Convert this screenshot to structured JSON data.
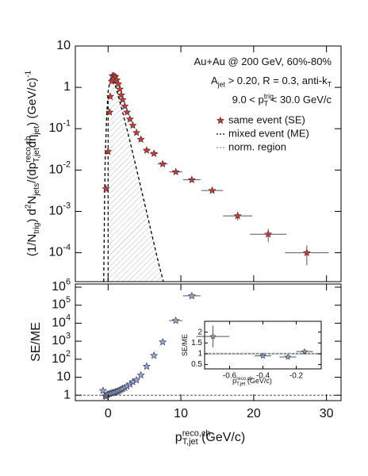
{
  "chart_data": [
    {
      "type": "scatter",
      "log_y": true,
      "ylabel": [
        {
          "t": "(1/N"
        },
        {
          "sub": "trig"
        },
        {
          "t": ") d"
        },
        {
          "sup": "2"
        },
        {
          "t": "N"
        },
        {
          "sub": "jets"
        },
        {
          "t": "/(dp"
        },
        {
          "sup": "reco,ch",
          "sub": "T,jet"
        },
        {
          "t": "dη"
        },
        {
          "sub": "jet"
        },
        {
          "t": ")  (GeV/c)"
        },
        {
          "sup": "-1"
        }
      ],
      "annotations": [
        [
          {
            "t": "Au+Au @ 200 GeV, 60%-80%"
          }
        ],
        [
          {
            "t": "A"
          },
          {
            "sub": "jet"
          },
          {
            "t": " > 0.20, R = 0.3, anti-k"
          },
          {
            "sub": "T"
          }
        ],
        [
          {
            "t": "9.0 < p"
          },
          {
            "sup": "trig",
            "sub": "T"
          },
          {
            "t": " < 30.0 GeV/c"
          }
        ]
      ],
      "xlim": [
        -4.5,
        32
      ],
      "ylim": [
        2e-05,
        10
      ],
      "yticks": [
        {
          "value": 10,
          "label": "10"
        },
        {
          "value": 1,
          "label": "1"
        },
        {
          "value": 0.1,
          "label": "10",
          "sup": "-1"
        },
        {
          "value": 0.01,
          "label": "10",
          "sup": "-2"
        },
        {
          "value": 0.001,
          "label": "10",
          "sup": "-3"
        },
        {
          "value": 0.0001,
          "label": "10",
          "sup": "-4"
        }
      ],
      "series": [
        {
          "name": "same event (SE)",
          "color": "#e03030",
          "marker": "star",
          "x": [
            -0.3,
            0.0,
            0.2,
            0.3,
            0.5,
            0.6,
            0.8,
            1.0,
            1.2,
            1.4,
            1.6,
            1.8,
            2.0,
            2.3,
            2.6,
            3.0,
            3.4,
            3.9,
            4.5,
            5.3,
            6.3,
            7.5,
            9.3,
            11.5,
            14.3,
            17.8,
            22.0,
            27.3
          ],
          "values": [
            0.0035,
            0.028,
            0.25,
            0.6,
            1.4,
            1.9,
            1.9,
            1.8,
            1.5,
            1.2,
            0.9,
            0.65,
            0.5,
            0.35,
            0.25,
            0.17,
            0.12,
            0.08,
            0.055,
            0.03,
            0.025,
            0.014,
            0.009,
            0.0058,
            0.0032,
            0.00078,
            0.00028,
            0.0001
          ],
          "xerr": [
            0.1,
            0.1,
            0.1,
            0.1,
            0.1,
            0.1,
            0.1,
            0.1,
            0.1,
            0.1,
            0.1,
            0.1,
            0.1,
            0.15,
            0.15,
            0.2,
            0.2,
            0.25,
            0.3,
            0.4,
            0.5,
            0.7,
            0.9,
            1.2,
            1.5,
            2,
            2.5,
            3
          ],
          "yerr": [
            null,
            null,
            null,
            null,
            null,
            null,
            null,
            null,
            null,
            null,
            null,
            null,
            null,
            null,
            null,
            null,
            null,
            null,
            null,
            null,
            null,
            null,
            null,
            null,
            null,
            0.00018,
            0.0001,
            5e-05
          ]
        },
        {
          "name": "mixed event (ME)",
          "color": "#000000",
          "marker": "dashed-line",
          "x": [
            -0.6,
            -0.5,
            -0.4,
            -0.2,
            0.0,
            0.3,
            0.5,
            1.0,
            2.0,
            3.0,
            4.0,
            5.0,
            6.0,
            7.0,
            7.6
          ],
          "values": [
            2e-05,
            0.001,
            0.02,
            0.2,
            0.8,
            1.6,
            1.9,
            1.1,
            0.25,
            0.05,
            0.009,
            0.0016,
            0.00028,
            5e-05,
            2e-05
          ]
        }
      ],
      "shaded_region": {
        "name": "norm. region",
        "color": "#9a9a9a",
        "xrange": [
          0,
          7.6
        ]
      }
    },
    {
      "type": "scatter",
      "log_y": true,
      "ylabel": [
        {
          "t": "SE/ME"
        }
      ],
      "xlabel": [
        {
          "t": "p"
        },
        {
          "sup": "reco,ch",
          "sub": "T,jet"
        },
        {
          "t": "  (GeV/c)"
        }
      ],
      "xlim": [
        -4.5,
        32
      ],
      "ylim": [
        0.5,
        1500000
      ],
      "xticks": [
        0,
        10,
        20,
        30
      ],
      "yticks": [
        1,
        10,
        {
          "value": 100,
          "label": "10",
          "sup": "2"
        },
        {
          "value": 1000,
          "label": "10",
          "sup": "3"
        },
        {
          "value": 10000,
          "label": "10",
          "sup": "4"
        },
        {
          "value": 100000,
          "label": "10",
          "sup": "5"
        },
        {
          "value": 1000000,
          "label": "10",
          "sup": "6"
        }
      ],
      "reference_line": 1,
      "series": [
        {
          "color": "#8fa6e8",
          "marker": "star",
          "x": [
            -0.7,
            -0.4,
            -0.25,
            -0.15,
            0.0,
            0.2,
            0.4,
            0.6,
            0.8,
            1.0,
            1.2,
            1.4,
            1.6,
            1.8,
            2.0,
            2.3,
            2.6,
            3.0,
            3.4,
            3.9,
            4.5,
            5.3,
            6.3,
            7.5,
            9.3,
            11.5
          ],
          "values": [
            1.8,
            0.9,
            0.85,
            1.1,
            1.1,
            1.2,
            1.3,
            1.35,
            1.4,
            1.5,
            1.6,
            1.7,
            1.9,
            2.1,
            2.3,
            2.6,
            3.2,
            4,
            5.5,
            7,
            13,
            40,
            160,
            900,
            14000,
            330000
          ],
          "xerr": [
            null,
            null,
            null,
            null,
            null,
            null,
            null,
            null,
            null,
            null,
            null,
            null,
            null,
            null,
            null,
            null,
            null,
            null,
            null,
            null,
            null,
            null,
            null,
            null,
            0.9,
            1.2
          ]
        }
      ]
    },
    {
      "type": "scatter",
      "log_y": false,
      "ylabel": [
        {
          "t": "SE/ME"
        }
      ],
      "xlabel": [
        {
          "t": "p"
        },
        {
          "sup": "reco,ch",
          "sub": "T,jet"
        },
        {
          "t": "  (GeV/c)"
        }
      ],
      "xlim": [
        -0.75,
        -0.05
      ],
      "ylim": [
        0.3,
        2.5
      ],
      "xticks": [
        -0.6,
        -0.4,
        -0.2
      ],
      "yticks": [
        0.5,
        1,
        1.5,
        2
      ],
      "reference_line": 1,
      "band": {
        "color": "#b8c8c8",
        "range": [
          0.95,
          1.05
        ]
      },
      "series": [
        {
          "color": "#8fa6e8",
          "marker": "star",
          "x": [
            -0.7,
            -0.4,
            -0.25,
            -0.15
          ],
          "values": [
            1.8,
            0.9,
            0.85,
            1.1
          ],
          "xerr": [
            0.1,
            0.05,
            0.05,
            0.05
          ],
          "yerr": [
            0.5,
            0.07,
            0.05,
            0.1
          ]
        }
      ]
    }
  ]
}
